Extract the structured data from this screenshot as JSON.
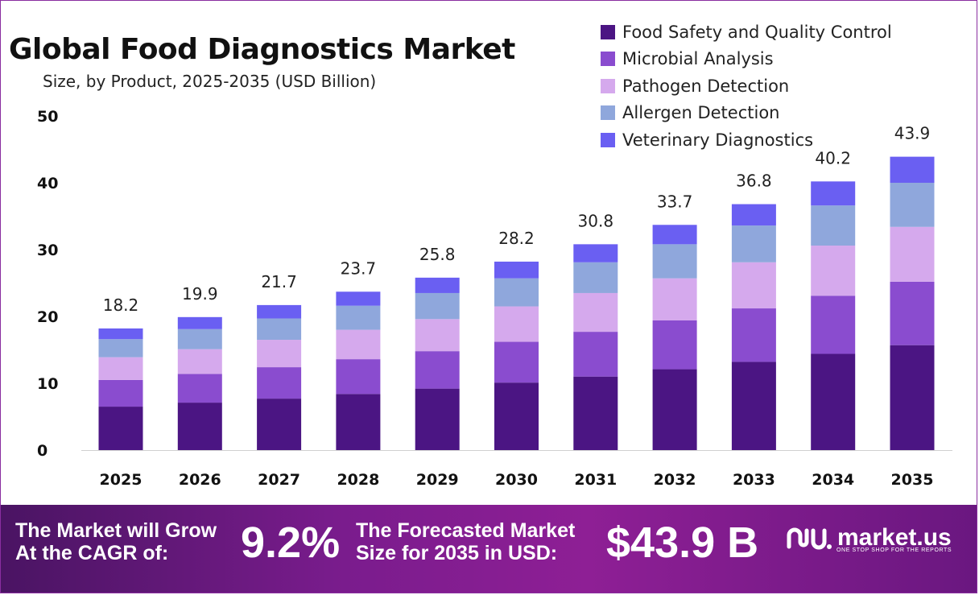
{
  "header": {
    "title": "Global Food Diagnostics Market",
    "subtitle": "Size, by Product, 2025-2035 (USD Billion)"
  },
  "footer": {
    "cagr_label_line1": "The Market will Grow",
    "cagr_label_line2": "At the CAGR of:",
    "cagr_value": "9.2%",
    "forecast_label_line1": "The Forecasted Market",
    "forecast_label_line2": "Size for 2035 in USD:",
    "forecast_value": "$43.9 B",
    "brand_name": "market.us",
    "brand_tagline": "ONE STOP SHOP FOR THE REPORTS",
    "brand_icon": "market-us-logo-icon"
  },
  "colors": {
    "footer_gradient_start": "#4a1463",
    "footer_gradient_end": "#8e1f95",
    "frame_border": "#8a2ea0"
  },
  "chart_data": {
    "type": "bar",
    "stacked": true,
    "categories": [
      "2025",
      "2026",
      "2027",
      "2028",
      "2029",
      "2030",
      "2031",
      "2032",
      "2033",
      "2034",
      "2035"
    ],
    "ylim": [
      0,
      50
    ],
    "yticks": [
      0,
      10,
      20,
      30,
      40,
      50
    ],
    "grid": false,
    "legend_position": "top-right",
    "totals": [
      18.2,
      19.9,
      21.7,
      23.7,
      25.8,
      28.2,
      30.8,
      33.7,
      36.8,
      40.2,
      43.9
    ],
    "series": [
      {
        "name": "Food Safety and Quality Control",
        "color": "#4b1583",
        "values": [
          6.5,
          7.1,
          7.7,
          8.4,
          9.2,
          10.1,
          11.0,
          12.1,
          13.2,
          14.4,
          15.7
        ]
      },
      {
        "name": "Microbial Analysis",
        "color": "#8a4ccf",
        "values": [
          4.0,
          4.3,
          4.7,
          5.2,
          5.6,
          6.1,
          6.7,
          7.3,
          8.0,
          8.7,
          9.5
        ]
      },
      {
        "name": "Pathogen Detection",
        "color": "#d5a9ed",
        "values": [
          3.4,
          3.7,
          4.1,
          4.4,
          4.8,
          5.3,
          5.8,
          6.3,
          6.9,
          7.5,
          8.2
        ]
      },
      {
        "name": "Allergen Detection",
        "color": "#8fa7dc",
        "values": [
          2.7,
          3.0,
          3.2,
          3.6,
          3.9,
          4.2,
          4.6,
          5.1,
          5.5,
          6.0,
          6.6
        ]
      },
      {
        "name": "Veterinary Diagnostics",
        "color": "#6a5ff2",
        "values": [
          1.6,
          1.8,
          2.0,
          2.1,
          2.3,
          2.5,
          2.7,
          2.9,
          3.2,
          3.6,
          3.9
        ]
      }
    ]
  }
}
